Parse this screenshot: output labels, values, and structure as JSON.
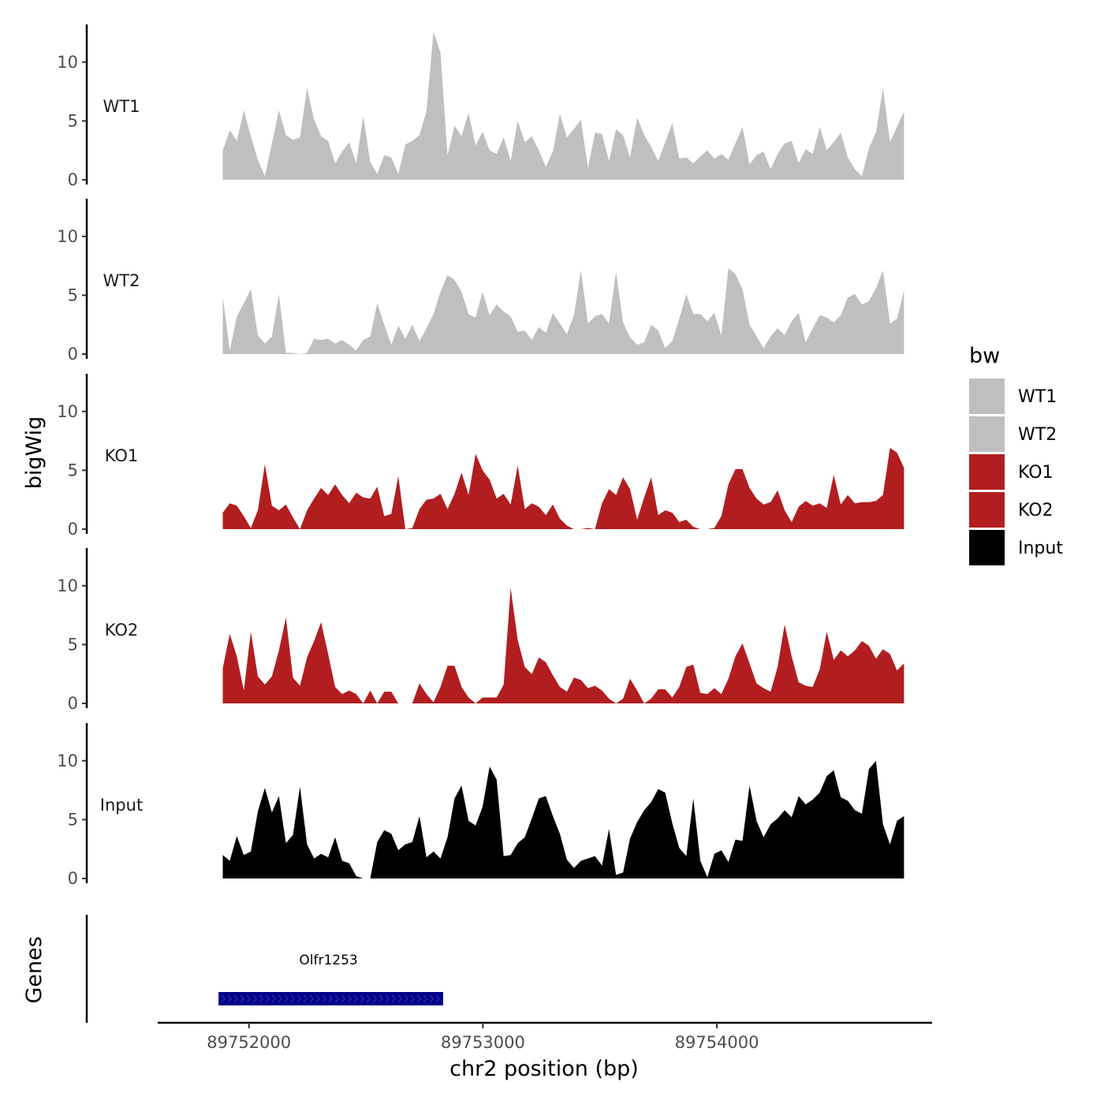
{
  "chart_data": {
    "type": "area",
    "xlabel": "chr2 position (bp)",
    "ylabel": "bigWig",
    "genes_label": "Genes",
    "x_range": [
      89751888,
      89754800
    ],
    "xlim": [
      89751610,
      89754920
    ],
    "ylim": [
      0,
      13.2
    ],
    "x_ticks": [
      89752000,
      89753000,
      89754000
    ],
    "x_tick_labels": [
      "89752000",
      "89753000",
      "89754000"
    ],
    "y_ticks": [
      0,
      5,
      10
    ],
    "y_tick_labels": [
      "0",
      "5",
      "10"
    ],
    "legend": {
      "title": "bw",
      "position": "right",
      "entries": [
        {
          "label": "WT1",
          "color": "#bfbfbf"
        },
        {
          "label": "WT2",
          "color": "#bfbfbf"
        },
        {
          "label": "KO1",
          "color": "#b21e20"
        },
        {
          "label": "KO2",
          "color": "#b21e20"
        },
        {
          "label": "Input",
          "color": "#000000"
        }
      ]
    },
    "series": [
      {
        "name": "WT1",
        "color": "#bfbfbf",
        "values": [
          2.5,
          4.2,
          3.3,
          5.9,
          3.7,
          1.7,
          0.3,
          3.1,
          5.9,
          3.8,
          3.4,
          3.6,
          7.8,
          5.1,
          3.7,
          3.3,
          1.4,
          2.4,
          3.2,
          1.4,
          5.4,
          1.5,
          0.5,
          2.1,
          1.9,
          0.5,
          3.0,
          3.3,
          3.8,
          5.8,
          12.6,
          10.8,
          2.1,
          4.6,
          3.7,
          5.7,
          2.9,
          4.1,
          2.5,
          2.2,
          3.6,
          1.6,
          5.0,
          3.2,
          3.7,
          2.5,
          1.1,
          2.4,
          5.6,
          3.6,
          4.3,
          5.1,
          1.0,
          4.0,
          3.9,
          1.6,
          4.3,
          3.8,
          1.9,
          5.3,
          3.8,
          2.8,
          1.6,
          3.2,
          4.8,
          1.8,
          1.9,
          1.4,
          2.0,
          2.5,
          1.8,
          2.2,
          1.7,
          3.1,
          4.5,
          1.3,
          2.1,
          2.4,
          0.9,
          2.2,
          3.1,
          3.3,
          1.4,
          2.6,
          2.2,
          4.5,
          2.5,
          3.2,
          4.0,
          1.9,
          0.9,
          0.3,
          2.7,
          4.0,
          7.8,
          3.2,
          4.5,
          5.8
        ]
      },
      {
        "name": "WT2",
        "color": "#bfbfbf",
        "values": [
          4.9,
          0.3,
          3.2,
          4.3,
          5.5,
          1.6,
          0.9,
          1.5,
          5.1,
          0.1,
          0.1,
          0.0,
          0.1,
          1.3,
          1.2,
          1.3,
          0.9,
          1.2,
          0.8,
          0.3,
          1.2,
          1.5,
          4.3,
          2.5,
          0.8,
          2.4,
          1.3,
          2.5,
          1.1,
          2.2,
          3.4,
          5.3,
          6.7,
          6.3,
          5.3,
          3.4,
          3.1,
          5.3,
          3.3,
          4.2,
          3.6,
          3.2,
          1.9,
          2.0,
          1.2,
          2.3,
          1.8,
          3.5,
          2.6,
          1.7,
          3.3,
          7.1,
          2.6,
          3.2,
          3.4,
          2.6,
          7.0,
          2.7,
          1.4,
          0.8,
          1.0,
          2.5,
          2.0,
          0.5,
          1.1,
          3.0,
          5.1,
          3.4,
          3.4,
          2.8,
          3.5,
          1.6,
          7.3,
          6.8,
          5.5,
          2.5,
          1.5,
          0.5,
          1.5,
          2.2,
          1.6,
          2.8,
          3.5,
          1.0,
          2.2,
          3.3,
          3.1,
          2.7,
          3.3,
          4.8,
          5.1,
          4.2,
          4.5,
          5.6,
          7.1,
          2.6,
          3.0,
          5.4
        ]
      },
      {
        "name": "KO1",
        "color": "#b21e20",
        "values": [
          1.4,
          2.2,
          2.0,
          1.1,
          0.1,
          1.6,
          5.5,
          2.0,
          1.6,
          2.1,
          1.0,
          0.0,
          1.6,
          2.6,
          3.5,
          2.9,
          3.8,
          2.9,
          2.2,
          3.1,
          2.7,
          2.6,
          3.6,
          1.1,
          1.3,
          4.5,
          0.0,
          0.1,
          1.7,
          2.5,
          2.6,
          3.0,
          1.7,
          3.0,
          4.8,
          2.9,
          6.4,
          5.0,
          4.2,
          2.6,
          3.0,
          2.1,
          5.4,
          1.7,
          2.2,
          1.9,
          1.2,
          2.1,
          0.9,
          0.3,
          0.0,
          0.0,
          0.1,
          0.0,
          2.2,
          3.4,
          2.9,
          4.4,
          3.4,
          0.8,
          2.7,
          4.4,
          1.2,
          1.6,
          1.4,
          0.6,
          0.8,
          0.2,
          0.0,
          0.0,
          0.1,
          1.1,
          3.8,
          5.1,
          5.1,
          3.5,
          2.6,
          2.1,
          2.3,
          3.3,
          1.6,
          0.6,
          1.9,
          2.4,
          2.0,
          2.2,
          1.8,
          4.6,
          2.1,
          2.9,
          2.2,
          2.3,
          2.3,
          2.4,
          2.9,
          6.9,
          6.5,
          5.2
        ]
      },
      {
        "name": "KO2",
        "color": "#b21e20",
        "values": [
          3.0,
          5.9,
          4.0,
          1.1,
          6.1,
          2.3,
          1.6,
          2.3,
          4.5,
          7.3,
          2.2,
          1.5,
          3.9,
          5.3,
          6.9,
          4.2,
          1.4,
          0.8,
          1.1,
          0.8,
          0.0,
          1.1,
          0.0,
          1.0,
          1.0,
          0.0,
          0.0,
          0.0,
          1.7,
          0.8,
          0.1,
          1.4,
          3.2,
          3.2,
          1.4,
          0.5,
          0.0,
          0.5,
          0.5,
          0.5,
          1.6,
          9.8,
          5.4,
          3.1,
          2.5,
          3.9,
          3.5,
          2.4,
          1.4,
          1.0,
          2.2,
          2.0,
          1.3,
          1.5,
          1.1,
          0.4,
          0.0,
          0.4,
          2.1,
          1.1,
          0.0,
          0.4,
          1.2,
          1.2,
          0.5,
          1.4,
          3.1,
          3.3,
          0.9,
          0.8,
          1.3,
          0.8,
          2.1,
          4.0,
          5.1,
          3.4,
          1.7,
          1.3,
          1.0,
          3.1,
          6.7,
          4.0,
          1.8,
          1.5,
          1.4,
          2.9,
          6.1,
          3.7,
          4.5,
          4.0,
          4.5,
          5.3,
          4.9,
          3.8,
          4.6,
          4.2,
          2.8,
          3.4
        ]
      },
      {
        "name": "Input",
        "color": "#000000",
        "values": [
          2.0,
          1.5,
          3.6,
          2.0,
          2.3,
          5.7,
          7.7,
          5.6,
          7.0,
          3.0,
          3.7,
          7.8,
          2.9,
          1.7,
          2.1,
          1.8,
          3.5,
          1.5,
          1.3,
          0.2,
          0.0,
          0.0,
          3.1,
          4.1,
          3.8,
          2.4,
          2.9,
          3.1,
          5.3,
          1.8,
          2.3,
          1.7,
          3.5,
          6.8,
          7.9,
          4.9,
          4.5,
          6.1,
          9.5,
          8.4,
          1.9,
          2.0,
          3.0,
          3.5,
          5.1,
          6.8,
          7.0,
          5.3,
          3.8,
          1.6,
          0.9,
          1.5,
          1.7,
          1.9,
          1.1,
          4.2,
          0.3,
          0.5,
          3.4,
          4.8,
          5.8,
          6.5,
          7.6,
          7.3,
          4.7,
          2.6,
          1.9,
          6.8,
          1.5,
          0.1,
          2.1,
          2.4,
          1.4,
          3.3,
          3.2,
          7.9,
          4.9,
          3.5,
          4.6,
          5.1,
          5.8,
          5.2,
          7.0,
          6.3,
          6.7,
          7.3,
          8.7,
          9.2,
          6.9,
          6.6,
          5.8,
          5.5,
          9.3,
          10.0,
          4.6,
          2.9,
          4.9,
          5.3
        ]
      }
    ],
    "genes": [
      {
        "name": "Olfr1253",
        "start": 89751870,
        "end": 89752830,
        "color": "#00008b"
      }
    ]
  }
}
